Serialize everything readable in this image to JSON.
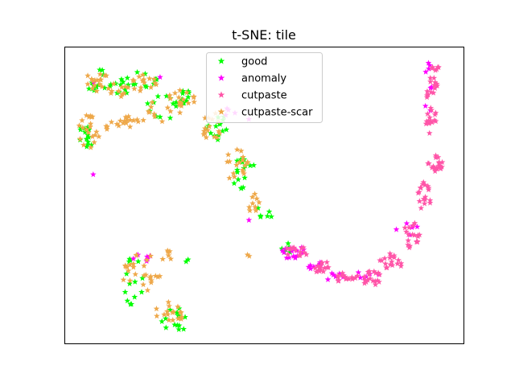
{
  "chart_data": {
    "type": "scatter",
    "title": "t-SNE: tile",
    "xlabel": "",
    "ylabel": "",
    "axis_ticks": "none",
    "grid": false,
    "legend_position": "top-center",
    "marker": "star",
    "xlim": [
      0,
      100
    ],
    "ylim": [
      0,
      100
    ],
    "series": [
      {
        "name": "good",
        "color": "#00ff00",
        "clusters": [
          {
            "cx": 8,
            "cy": 89,
            "rx": 3,
            "ry": 4,
            "n": 12
          },
          {
            "cx": 13,
            "cy": 86,
            "rx": 3,
            "ry": 3,
            "n": 8
          },
          {
            "cx": 6,
            "cy": 70,
            "rx": 2.5,
            "ry": 6,
            "n": 14
          },
          {
            "cx": 19,
            "cy": 89,
            "rx": 5,
            "ry": 3,
            "n": 14
          },
          {
            "cx": 25,
            "cy": 80,
            "rx": 5,
            "ry": 4,
            "n": 12
          },
          {
            "cx": 31,
            "cy": 83,
            "rx": 4,
            "ry": 3,
            "n": 12
          },
          {
            "cx": 38,
            "cy": 73,
            "rx": 3,
            "ry": 5,
            "n": 14
          },
          {
            "cx": 45,
            "cy": 57,
            "rx": 3,
            "ry": 6,
            "n": 16
          },
          {
            "cx": 50,
            "cy": 44,
            "rx": 2,
            "ry": 3,
            "n": 6
          },
          {
            "cx": 17,
            "cy": 21,
            "rx": 3,
            "ry": 8,
            "n": 14
          },
          {
            "cx": 28,
            "cy": 8,
            "rx": 4,
            "ry": 4,
            "n": 14
          },
          {
            "cx": 56,
            "cy": 32,
            "rx": 2,
            "ry": 2,
            "n": 6
          },
          {
            "cx": 31,
            "cy": 28,
            "rx": 1,
            "ry": 1,
            "n": 2
          }
        ]
      },
      {
        "name": "anomaly",
        "color": "#ff00ff",
        "clusters": [
          {
            "cx": 57,
            "cy": 31,
            "rx": 3,
            "ry": 2.5,
            "n": 16
          },
          {
            "cx": 62,
            "cy": 27,
            "rx": 2.5,
            "ry": 2,
            "n": 8
          },
          {
            "cx": 68,
            "cy": 23,
            "rx": 3,
            "ry": 2,
            "n": 8
          },
          {
            "cx": 76,
            "cy": 23,
            "rx": 3,
            "ry": 2,
            "n": 6
          },
          {
            "cx": 86,
            "cy": 38,
            "rx": 3,
            "ry": 5,
            "n": 6
          },
          {
            "cx": 91,
            "cy": 86,
            "rx": 2,
            "ry": 10,
            "n": 8
          },
          {
            "cx": 20,
            "cy": 29,
            "rx": 3,
            "ry": 3,
            "n": 6
          },
          {
            "cx": 43,
            "cy": 77,
            "rx": 4,
            "ry": 3,
            "n": 5
          },
          {
            "cx": 8,
            "cy": 88,
            "rx": 1,
            "ry": 1,
            "n": 1
          },
          {
            "cx": 24,
            "cy": 90,
            "rx": 1,
            "ry": 1,
            "n": 1
          },
          {
            "cx": 47,
            "cy": 42,
            "rx": 1,
            "ry": 1,
            "n": 1
          },
          {
            "cx": 7,
            "cy": 58,
            "rx": 1,
            "ry": 1,
            "n": 1
          }
        ]
      },
      {
        "name": "cutpaste",
        "color": "#ff55a8",
        "clusters": [
          {
            "cx": 58,
            "cy": 31,
            "rx": 3,
            "ry": 2,
            "n": 14
          },
          {
            "cx": 64,
            "cy": 26,
            "rx": 3,
            "ry": 2,
            "n": 16
          },
          {
            "cx": 71,
            "cy": 22,
            "rx": 3,
            "ry": 2,
            "n": 16
          },
          {
            "cx": 77,
            "cy": 22,
            "rx": 3,
            "ry": 2.5,
            "n": 18
          },
          {
            "cx": 82,
            "cy": 28,
            "rx": 3,
            "ry": 3,
            "n": 18
          },
          {
            "cx": 87,
            "cy": 37,
            "rx": 2,
            "ry": 5,
            "n": 18
          },
          {
            "cx": 90,
            "cy": 50,
            "rx": 2,
            "ry": 5,
            "n": 18
          },
          {
            "cx": 93,
            "cy": 62,
            "rx": 2,
            "ry": 5,
            "n": 18
          },
          {
            "cx": 92,
            "cy": 75,
            "rx": 1.5,
            "ry": 5,
            "n": 16
          },
          {
            "cx": 92,
            "cy": 86,
            "rx": 1.5,
            "ry": 5,
            "n": 14
          },
          {
            "cx": 93,
            "cy": 93,
            "rx": 1,
            "ry": 2,
            "n": 6
          }
        ]
      },
      {
        "name": "cutpaste-scar",
        "color": "#eea84a",
        "clusters": [
          {
            "cx": 8,
            "cy": 89,
            "rx": 3,
            "ry": 4,
            "n": 16
          },
          {
            "cx": 13,
            "cy": 85,
            "rx": 3,
            "ry": 3,
            "n": 10
          },
          {
            "cx": 6,
            "cy": 72,
            "rx": 3,
            "ry": 6,
            "n": 20
          },
          {
            "cx": 12,
            "cy": 74,
            "rx": 3,
            "ry": 2,
            "n": 8
          },
          {
            "cx": 19,
            "cy": 88,
            "rx": 4,
            "ry": 3,
            "n": 16
          },
          {
            "cx": 17,
            "cy": 76,
            "rx": 3,
            "ry": 3,
            "n": 12
          },
          {
            "cx": 25,
            "cy": 79,
            "rx": 5,
            "ry": 5,
            "n": 16
          },
          {
            "cx": 30,
            "cy": 83,
            "rx": 3,
            "ry": 3,
            "n": 12
          },
          {
            "cx": 37,
            "cy": 73,
            "rx": 3,
            "ry": 5,
            "n": 16
          },
          {
            "cx": 43,
            "cy": 60,
            "rx": 3,
            "ry": 6,
            "n": 18
          },
          {
            "cx": 48,
            "cy": 47,
            "rx": 2,
            "ry": 4,
            "n": 10
          },
          {
            "cx": 19,
            "cy": 24,
            "rx": 5,
            "ry": 7,
            "n": 26
          },
          {
            "cx": 25,
            "cy": 30,
            "rx": 2,
            "ry": 3,
            "n": 6
          },
          {
            "cx": 26,
            "cy": 10,
            "rx": 4,
            "ry": 4,
            "n": 18
          },
          {
            "cx": 46,
            "cy": 29,
            "rx": 1,
            "ry": 1,
            "n": 2
          }
        ]
      }
    ]
  }
}
